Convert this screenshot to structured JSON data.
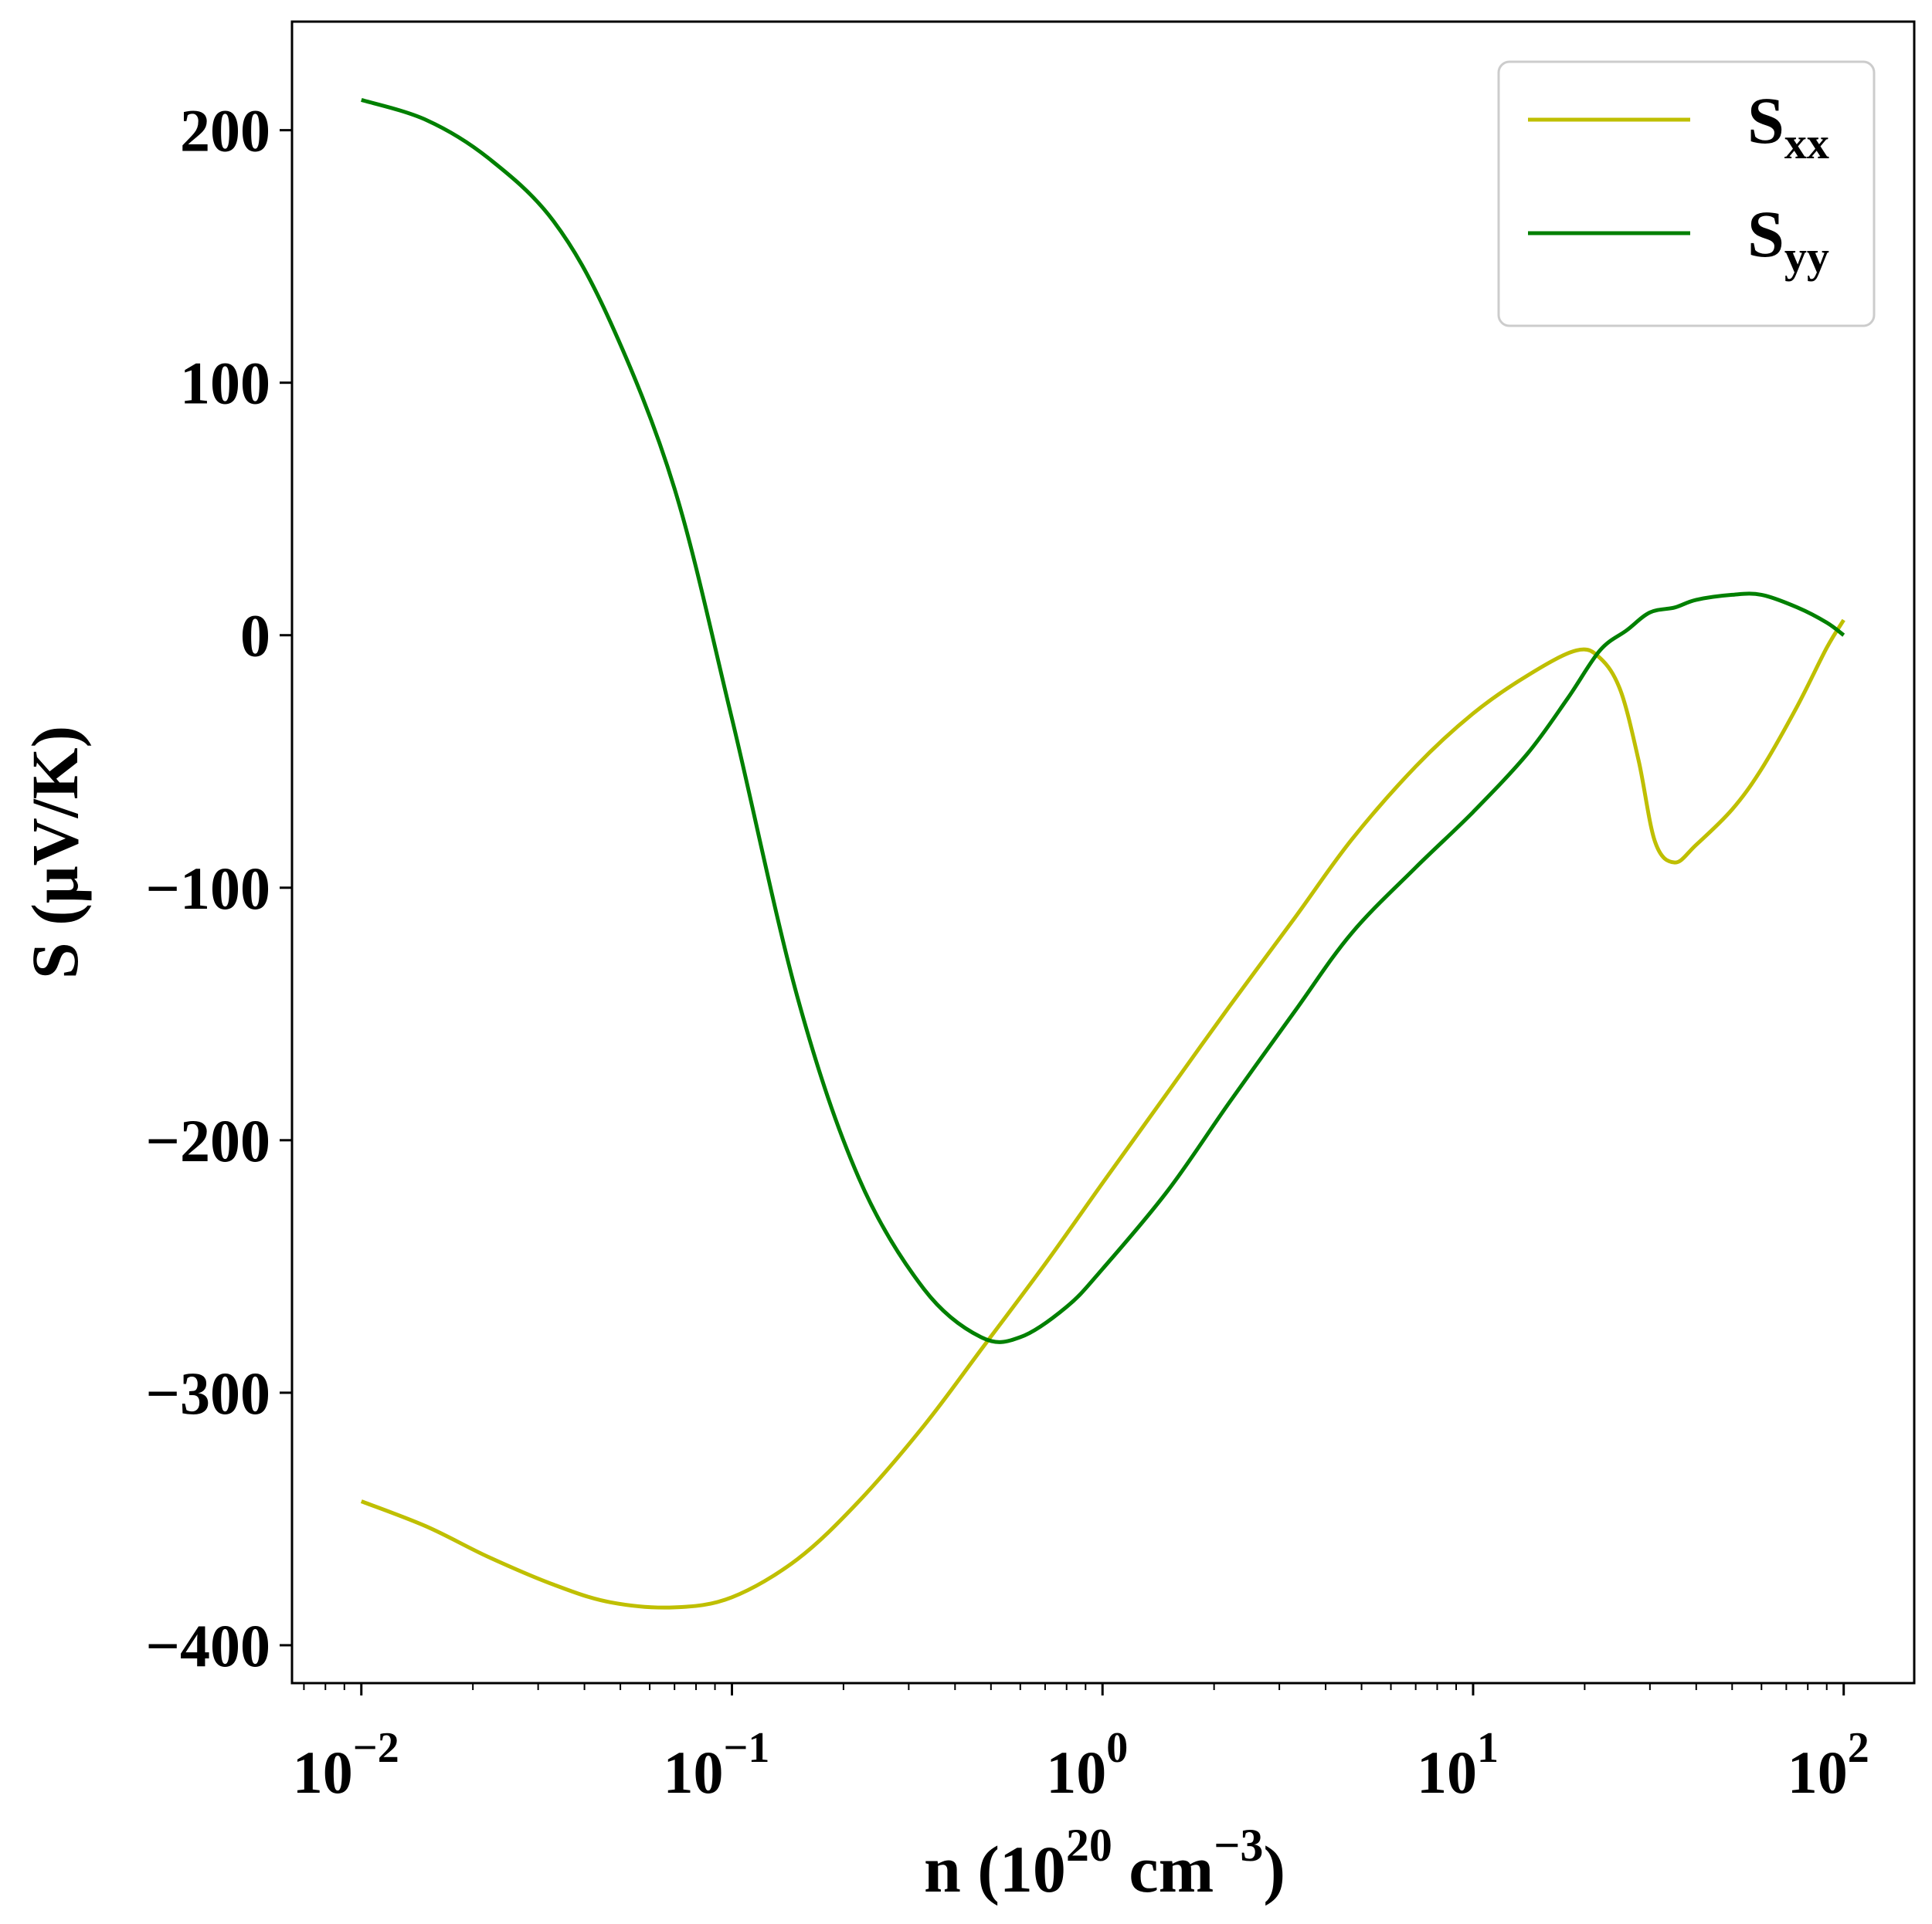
{
  "chart_data": {
    "type": "line",
    "title": "",
    "xlabel": {
      "text": "n (10",
      "sup1": "20",
      "mid": " cm",
      "sup2": "−3",
      "end": ")"
    },
    "ylabel": "S (μV/K)",
    "xscale": "log",
    "xlim": [
      0.0065,
      155
    ],
    "ylim": [
      -415,
      243
    ],
    "xticks": [
      {
        "value": 0.01,
        "base": "10",
        "exp": "−2"
      },
      {
        "value": 0.1,
        "base": "10",
        "exp": "−1"
      },
      {
        "value": 1,
        "base": "10",
        "exp": "0"
      },
      {
        "value": 10,
        "base": "10",
        "exp": "1"
      },
      {
        "value": 100,
        "base": "10",
        "exp": "2"
      }
    ],
    "yticks": [
      {
        "value": 200,
        "label": "200"
      },
      {
        "value": 100,
        "label": "100"
      },
      {
        "value": 0,
        "label": "0"
      },
      {
        "value": -100,
        "label": "−100"
      },
      {
        "value": -200,
        "label": "−200"
      },
      {
        "value": -300,
        "label": "−300"
      },
      {
        "value": -400,
        "label": "−400"
      }
    ],
    "grid": false,
    "legend_position": "top-right",
    "series": [
      {
        "name": "S",
        "sub": "xx",
        "color": "#bfbf00",
        "points": [
          [
            0.01,
            -343
          ],
          [
            0.015,
            -353
          ],
          [
            0.022,
            -365
          ],
          [
            0.033,
            -376
          ],
          [
            0.047,
            -383
          ],
          [
            0.07,
            -385
          ],
          [
            0.1,
            -381
          ],
          [
            0.15,
            -366
          ],
          [
            0.22,
            -343
          ],
          [
            0.33,
            -313
          ],
          [
            0.47,
            -283
          ],
          [
            0.7,
            -249
          ],
          [
            1.0,
            -217
          ],
          [
            1.5,
            -181
          ],
          [
            2.2,
            -147
          ],
          [
            3.3,
            -112
          ],
          [
            4.7,
            -81
          ],
          [
            7.0,
            -52
          ],
          [
            10.0,
            -31
          ],
          [
            14.0,
            -16
          ],
          [
            19.0,
            -6
          ],
          [
            22.0,
            -9
          ],
          [
            25.0,
            -22
          ],
          [
            28.0,
            -50
          ],
          [
            31.0,
            -82
          ],
          [
            35.0,
            -90
          ],
          [
            40.0,
            -83
          ],
          [
            50.0,
            -69
          ],
          [
            60.0,
            -53
          ],
          [
            75.0,
            -28
          ],
          [
            90.0,
            -5
          ],
          [
            100.0,
            6
          ]
        ]
      },
      {
        "name": "S",
        "sub": "yy",
        "color": "#008000",
        "points": [
          [
            0.01,
            212
          ],
          [
            0.015,
            204
          ],
          [
            0.022,
            189
          ],
          [
            0.033,
            164
          ],
          [
            0.047,
            124
          ],
          [
            0.07,
            58
          ],
          [
            0.1,
            -33
          ],
          [
            0.15,
            -143
          ],
          [
            0.22,
            -215
          ],
          [
            0.33,
            -259
          ],
          [
            0.47,
            -278
          ],
          [
            0.6,
            -278
          ],
          [
            0.8,
            -266
          ],
          [
            1.0,
            -251
          ],
          [
            1.5,
            -220
          ],
          [
            2.2,
            -185
          ],
          [
            3.3,
            -149
          ],
          [
            4.7,
            -118
          ],
          [
            7.0,
            -92
          ],
          [
            10.0,
            -70
          ],
          [
            14.0,
            -47
          ],
          [
            18.0,
            -25
          ],
          [
            22.0,
            -6
          ],
          [
            26.0,
            2
          ],
          [
            30.0,
            9
          ],
          [
            35.0,
            11
          ],
          [
            40.0,
            14
          ],
          [
            50.0,
            16
          ],
          [
            60.0,
            16
          ],
          [
            75.0,
            11
          ],
          [
            90.0,
            5
          ],
          [
            100.0,
            0
          ]
        ]
      }
    ]
  }
}
